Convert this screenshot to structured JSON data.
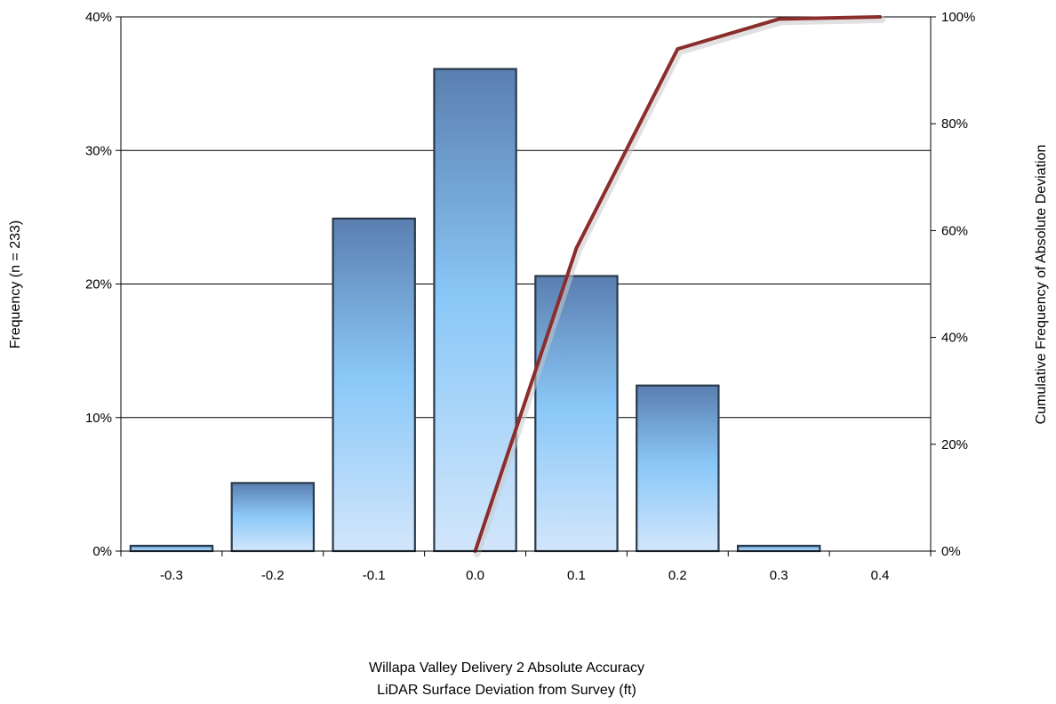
{
  "chart_data": {
    "type": "bar",
    "categories": [
      "-0.3",
      "-0.2",
      "-0.1",
      "0.0",
      "0.1",
      "0.2",
      "0.3",
      "0.4"
    ],
    "series": [
      {
        "type": "bar",
        "axis": "left",
        "values": [
          0.4,
          5.1,
          24.9,
          36.1,
          20.6,
          12.4,
          0.4,
          0.0
        ]
      },
      {
        "type": "line",
        "axis": "right",
        "x": [
          "0.0",
          "0.1",
          "0.2",
          "0.3",
          "0.4"
        ],
        "values": [
          0.0,
          56.7,
          94.0,
          99.6,
          100.0
        ]
      }
    ],
    "ylabel": "Frequency (n = 233)",
    "y2label": "Cumulative Frequency of Absolute Deviation",
    "xlabel_lines": [
      "Willapa Valley Delivery 2 Absolute Accuracy",
      "LiDAR Surface Deviation from Survey (ft)"
    ],
    "ylim": [
      0,
      40
    ],
    "y2lim": [
      0,
      100
    ],
    "yticks": [
      "0%",
      "10%",
      "20%",
      "30%",
      "40%"
    ],
    "y2ticks": [
      "0%",
      "20%",
      "40%",
      "60%",
      "80%",
      "100%"
    ],
    "grid": true,
    "colors": {
      "bar_top": "#5a7fb0",
      "bar_mid": "#8ac8f8",
      "bar_bottom": "#d2e6fb",
      "bar_stroke": "#2b3a4a",
      "line": "#8b2e2b"
    }
  }
}
